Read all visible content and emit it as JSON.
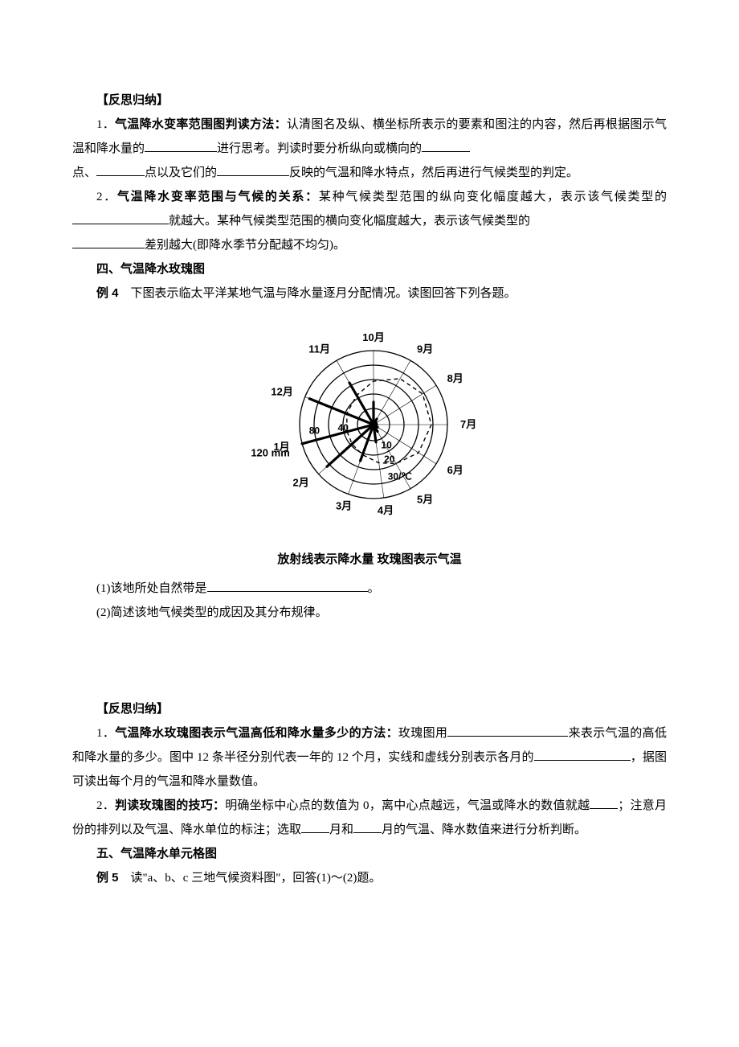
{
  "section1": {
    "heading": "【反思归纳】",
    "p1_a": "1．",
    "p1_b": "气温降水变率范围图判读方法：",
    "p1_c": "认清图名及纵、横坐标所表示的要素和图注的内容，然后再根据图示气温和降水量的",
    "p1_d": "进行思考。判读时要分析纵向或横向的",
    "p1_e": "点、",
    "p1_f": "点以及它们的",
    "p1_g": "反映的气温和降水特点，然后再进行气候类型的判定。",
    "p2_a": "2．",
    "p2_b": "气温降水变率范围与气候的关系：",
    "p2_c": "某种气候类型范围的纵向变化幅度越大，表示该气候类型的",
    "p2_d": "就越大。某种气候类型范围的横向变化幅度越大，表示该气候类型的",
    "p2_e": "差别越大(即降水季节分配越不均匀)。"
  },
  "section2": {
    "heading": "四、气温降水玫瑰图",
    "ex_label": "例 4",
    "ex_text": "下图表示临太平洋某地气温与降水量逐月分配情况。读图回答下列各题。",
    "q1": "(1)该地所处自然带是",
    "q1_end": "。",
    "q2": "(2)简述该地气候类型的成因及其分布规律。"
  },
  "diagram": {
    "caption": "放射线表示降水量  玫瑰图表示气温",
    "months": [
      "1月",
      "2月",
      "3月",
      "4月",
      "5月",
      "6月",
      "7月",
      "8月",
      "9月",
      "10月",
      "11月",
      "12月"
    ],
    "ring_radii": [
      20,
      38,
      56,
      74,
      92
    ],
    "outer_label_left": "120 mm",
    "tick_labels": [
      "80",
      "40"
    ],
    "temp_labels": [
      "10",
      "20",
      "30/℃"
    ],
    "month_angles_deg": [
      195,
      222,
      250,
      278,
      300,
      328,
      0,
      32,
      60,
      90,
      120,
      158
    ],
    "precip_lengths": [
      92,
      78,
      48,
      22,
      10,
      6,
      4,
      4,
      8,
      28,
      60,
      86
    ],
    "temp_poly_r": [
      34,
      36,
      40,
      48,
      56,
      66,
      72,
      72,
      66,
      54,
      42,
      36
    ],
    "colors": {
      "stroke": "#000000",
      "bg": "#ffffff"
    }
  },
  "section3": {
    "heading": "【反思归纳】",
    "p1_a": "1．",
    "p1_b": "气温降水玫瑰图表示气温高低和降水量多少的方法：",
    "p1_c": "玫瑰图用",
    "p1_d": "来表示气温的高低和降水量的多少。图中 12 条半径分别代表一年的 12 个月，实线和虚线分别表示各月的",
    "p1_e": "，据图可读出每个月的气温和降水量数值。",
    "p2_a": "2．",
    "p2_b": "判读玫瑰图的技巧：",
    "p2_c": "明确坐标中心点的数值为 0，离中心点越远，气温或降水的数值就越",
    "p2_d": "；注意月份的排列以及气温、降水单位的标注；选取",
    "p2_e": "月和",
    "p2_f": "月的气温、降水数值来进行分析判断。"
  },
  "section4": {
    "heading": "五、气温降水单元格图",
    "ex_label": "例 5",
    "ex_text": "读\"a、b、c 三地气候资料图\"，回答(1)～(2)题。"
  }
}
